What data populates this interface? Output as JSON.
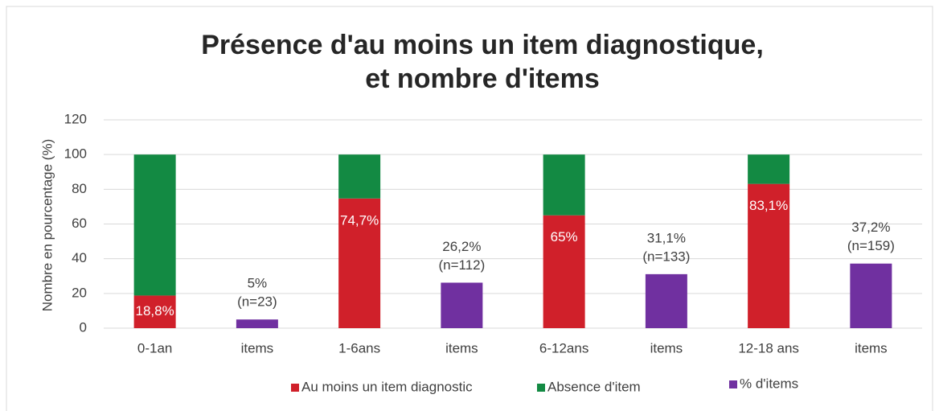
{
  "chart_data": {
    "type": "bar",
    "stacked": true,
    "title": [
      "Présence d'au moins un item diagnostique,",
      "et nombre d'items"
    ],
    "y_label": "Nombre en pourcentage (%)",
    "categories": [
      "0-1an",
      "items",
      "1-6ans",
      "items",
      "6-12ans",
      "items",
      "12-18 ans",
      "items"
    ],
    "series": [
      {
        "name": "Au moins un item diagnostic",
        "color": "#d0202a",
        "values": [
          18.8,
          null,
          74.7,
          null,
          65,
          null,
          83.1,
          null
        ],
        "value_labels": [
          "18,8%",
          null,
          "74,7%",
          null,
          "65%",
          null,
          "83,1%",
          null
        ]
      },
      {
        "name": "Absence d'item",
        "color": "#138a43",
        "values": [
          81.2,
          null,
          25.3,
          null,
          35,
          null,
          16.9,
          null
        ]
      },
      {
        "name": "% d'items",
        "color": "#7030a0",
        "values": [
          null,
          5,
          null,
          26.2,
          null,
          31.1,
          null,
          37.2
        ],
        "value_labels": [
          null,
          "5%",
          null,
          "26,2%",
          null,
          "31,1%",
          null,
          "37,2%"
        ],
        "count_labels": [
          null,
          "(n=23)",
          null,
          "(n=112)",
          null,
          "(n=133)",
          null,
          "(n=159)"
        ]
      }
    ],
    "ylim": [
      0,
      120
    ],
    "yticks": [
      0,
      20,
      40,
      60,
      80,
      100,
      120
    ],
    "grid": true
  }
}
